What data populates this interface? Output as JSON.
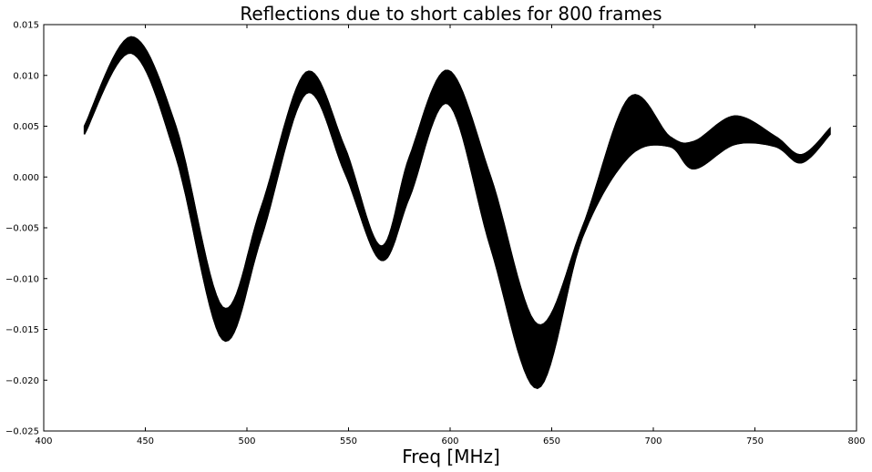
{
  "chart_data": {
    "type": "line",
    "title": "Reflections due to short cables for 800 frames",
    "xlabel": "Freq [MHz]",
    "ylabel": "",
    "xlim": [
      400,
      800
    ],
    "ylim": [
      -0.025,
      0.015
    ],
    "x_ticks": [
      400,
      450,
      500,
      550,
      600,
      650,
      700,
      750,
      800
    ],
    "x_tick_labels": [
      "400",
      "450",
      "500",
      "550",
      "600",
      "650",
      "700",
      "750",
      "800"
    ],
    "y_ticks": [
      0.015,
      0.01,
      0.005,
      0.0,
      -0.005,
      -0.01,
      -0.015,
      -0.02,
      -0.025
    ],
    "y_tick_labels": [
      "0.015",
      "0.010",
      "0.005",
      "0.000",
      "−0.005",
      "−0.010",
      "−0.015",
      "−0.020",
      "−0.025"
    ],
    "grid": false,
    "legend": "none",
    "color": "#000000",
    "num_frames": 800,
    "envelope": {
      "x": [
        420,
        443,
        465,
        488,
        507,
        529,
        548,
        566,
        580,
        599,
        620,
        643,
        665,
        688,
        708,
        720,
        740,
        760,
        773,
        787
      ],
      "upper": [
        0.005,
        0.0138,
        0.005,
        -0.0128,
        -0.003,
        0.0103,
        0.003,
        -0.0068,
        0.002,
        0.0105,
        0.0,
        -0.0145,
        -0.005,
        0.0078,
        0.004,
        0.0035,
        0.006,
        0.004,
        0.0022,
        0.0048
      ],
      "lower": [
        0.0042,
        0.0122,
        0.002,
        -0.016,
        -0.006,
        0.0082,
        0.0005,
        -0.0082,
        -0.002,
        0.0072,
        -0.007,
        -0.0208,
        -0.006,
        0.002,
        0.003,
        0.0008,
        0.0032,
        0.003,
        0.0014,
        0.0042
      ]
    },
    "series": [
      {
        "values": [
          0.005,
          0.0138,
          0.005,
          -0.0128,
          -0.003,
          0.0103,
          0.003,
          -0.0068,
          0.002,
          0.0105,
          0.0,
          -0.0145,
          -0.005,
          0.0078,
          0.004,
          0.0035,
          0.006,
          0.004,
          0.0022,
          0.0048
        ]
      },
      {
        "values": [
          0.0046,
          0.013,
          0.0035,
          -0.0144,
          -0.0045,
          0.0092,
          0.0018,
          -0.0075,
          0.0,
          0.0088,
          -0.0035,
          -0.0176,
          -0.0055,
          0.0049,
          0.0035,
          0.0022,
          0.0046,
          0.0035,
          0.0018,
          0.0045
        ]
      },
      {
        "values": [
          0.0042,
          0.0122,
          0.002,
          -0.016,
          -0.006,
          0.0082,
          0.0005,
          -0.0082,
          -0.002,
          0.0072,
          -0.007,
          -0.0208,
          -0.006,
          0.002,
          0.003,
          0.0008,
          0.0032,
          0.003,
          0.0014,
          0.0042
        ]
      }
    ]
  }
}
